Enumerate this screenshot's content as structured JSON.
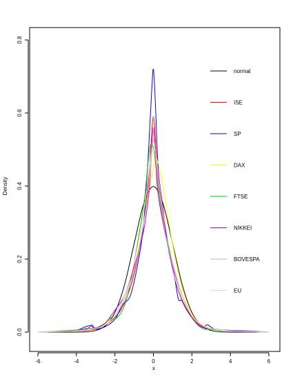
{
  "chart_data": {
    "type": "line",
    "title": "",
    "xlabel": "x",
    "ylabel": "Density",
    "xlim": [
      -6,
      6
    ],
    "ylim": [
      -0.05,
      0.85
    ],
    "x_ticks": [
      "-6",
      "-4",
      "-2",
      "0",
      "2",
      "4",
      "6"
    ],
    "y_ticks": [
      "0.0",
      "0.2",
      "0.4",
      "0.6",
      "0.8"
    ],
    "legend_position": "right",
    "series": [
      {
        "name": "normal",
        "color": "#000000",
        "x": [
          -6,
          -4,
          -3.5,
          -3,
          -2.5,
          -2,
          -1.5,
          -1,
          -0.5,
          0,
          0.5,
          1,
          1.5,
          2,
          2.5,
          3,
          3.5,
          4,
          6
        ],
        "y": [
          0,
          0.0001,
          0.0009,
          0.0044,
          0.0175,
          0.054,
          0.1295,
          0.242,
          0.3521,
          0.3989,
          0.3521,
          0.242,
          0.1295,
          0.054,
          0.0175,
          0.0044,
          0.0009,
          0.0001,
          0
        ]
      },
      {
        "name": "ISE",
        "color": "#ff0000",
        "x": [
          -6,
          -4,
          -3,
          -2.5,
          -2,
          -1.5,
          -1,
          -0.5,
          -0.2,
          0,
          0.2,
          0.5,
          1,
          1.5,
          2,
          2.5,
          3,
          4,
          6
        ],
        "y": [
          0,
          0.003,
          0.008,
          0.02,
          0.04,
          0.08,
          0.16,
          0.3,
          0.45,
          0.59,
          0.45,
          0.32,
          0.17,
          0.085,
          0.04,
          0.018,
          0.008,
          0.003,
          0
        ]
      },
      {
        "name": "SP",
        "color": "#0000ff",
        "x": [
          -6,
          -4.5,
          -4,
          -3.3,
          -3,
          -2.5,
          -2,
          -1.6,
          -1.2,
          -0.8,
          -0.5,
          -0.25,
          -0.1,
          0,
          0.1,
          0.25,
          0.5,
          0.8,
          1.1,
          1.3,
          1.5,
          2,
          2.5,
          2.8,
          3.2,
          4,
          5,
          6
        ],
        "y": [
          0,
          0.003,
          0.005,
          0.018,
          0.008,
          0.015,
          0.035,
          0.075,
          0.1,
          0.19,
          0.3,
          0.5,
          0.65,
          0.72,
          0.63,
          0.45,
          0.34,
          0.22,
          0.15,
          0.09,
          0.085,
          0.04,
          0.012,
          0.02,
          0.008,
          0.005,
          0.003,
          0
        ]
      },
      {
        "name": "DAX",
        "color": "#ffff00",
        "x": [
          -6,
          -4,
          -3,
          -2.5,
          -2,
          -1.5,
          -1,
          -0.5,
          0,
          0.2,
          0.5,
          1,
          1.5,
          2,
          2.5,
          3,
          4,
          6
        ],
        "y": [
          0,
          0.004,
          0.01,
          0.022,
          0.045,
          0.09,
          0.17,
          0.3,
          0.45,
          0.47,
          0.4,
          0.24,
          0.12,
          0.05,
          0.02,
          0.008,
          0.003,
          0
        ]
      },
      {
        "name": "FTSE",
        "color": "#00cc00",
        "x": [
          -6,
          -4,
          -3.5,
          -3,
          -2.5,
          -2.2,
          -2,
          -1.6,
          -1.3,
          -1,
          -0.5,
          -0.2,
          0,
          0.2,
          0.5,
          1,
          1.5,
          2,
          2.5,
          3,
          4,
          6
        ],
        "y": [
          0,
          0.006,
          0.01,
          0.012,
          0.025,
          0.04,
          0.035,
          0.06,
          0.11,
          0.19,
          0.35,
          0.5,
          0.505,
          0.42,
          0.3,
          0.19,
          0.1,
          0.045,
          0.012,
          0.007,
          0.003,
          0
        ]
      },
      {
        "name": "NIKKEI",
        "color": "#cc00cc",
        "x": [
          -6,
          -4.5,
          -3.5,
          -3.2,
          -3,
          -2.5,
          -2,
          -1.5,
          -1,
          -0.5,
          -0.2,
          0,
          0.2,
          0.5,
          1,
          1.5,
          2,
          2.5,
          3,
          4,
          5,
          6
        ],
        "y": [
          0,
          0.003,
          0.008,
          0.02,
          0.01,
          0.025,
          0.06,
          0.1,
          0.18,
          0.28,
          0.4,
          0.56,
          0.4,
          0.3,
          0.18,
          0.1,
          0.04,
          0.015,
          0.01,
          0.003,
          0.002,
          0
        ]
      },
      {
        "name": "BOVESPA",
        "color": "#bbbbbb",
        "x": [
          -6,
          -4,
          -3,
          -2.5,
          -2,
          -1.5,
          -1,
          -0.5,
          -0.2,
          0,
          0.2,
          0.5,
          1,
          1.5,
          2,
          2.5,
          3,
          4,
          6
        ],
        "y": [
          0,
          0.004,
          0.01,
          0.02,
          0.045,
          0.09,
          0.17,
          0.3,
          0.42,
          0.53,
          0.43,
          0.31,
          0.17,
          0.09,
          0.045,
          0.02,
          0.01,
          0.004,
          0
        ]
      },
      {
        "name": "EU",
        "color": "#ffcccc",
        "x": [
          -6,
          -4,
          -3,
          -2.5,
          -2,
          -1.5,
          -1,
          -0.5,
          0,
          0.5,
          1,
          1.5,
          2,
          2.5,
          3,
          4,
          6
        ],
        "y": [
          0,
          0.003,
          0.01,
          0.02,
          0.045,
          0.1,
          0.19,
          0.33,
          0.5,
          0.33,
          0.19,
          0.1,
          0.045,
          0.02,
          0.01,
          0.003,
          0
        ]
      }
    ]
  }
}
